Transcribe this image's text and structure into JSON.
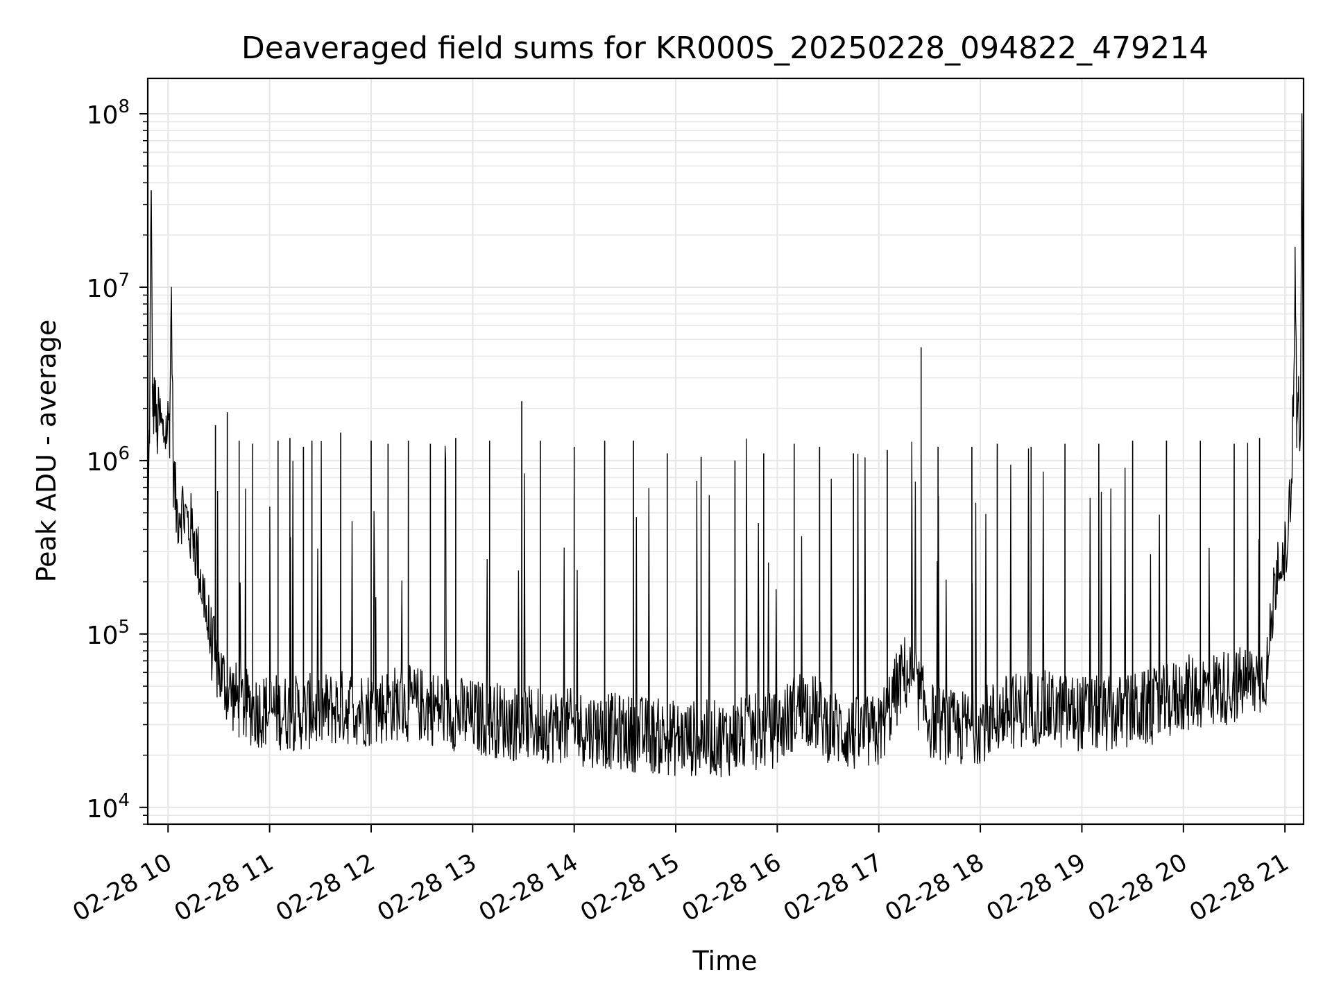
{
  "chart_data": {
    "type": "line",
    "title": "Deaveraged field sums for KR000S_20250228_094822_479214",
    "xlabel": "Time",
    "ylabel": "Peak ADU - average",
    "y_scale": "log",
    "ylim": [
      8000,
      160000000
    ],
    "xlim": [
      "2025-02-28 09:48",
      "2025-02-28 21:11"
    ],
    "grid": true,
    "line_color": "#000000",
    "grid_color": "#e6e6e6",
    "x_ticks": [
      {
        "value": "2025-02-28 10:00",
        "label": "02-28 10"
      },
      {
        "value": "2025-02-28 11:00",
        "label": "02-28 11"
      },
      {
        "value": "2025-02-28 12:00",
        "label": "02-28 12"
      },
      {
        "value": "2025-02-28 13:00",
        "label": "02-28 13"
      },
      {
        "value": "2025-02-28 14:00",
        "label": "02-28 14"
      },
      {
        "value": "2025-02-28 15:00",
        "label": "02-28 15"
      },
      {
        "value": "2025-02-28 16:00",
        "label": "02-28 16"
      },
      {
        "value": "2025-02-28 17:00",
        "label": "02-28 17"
      },
      {
        "value": "2025-02-28 18:00",
        "label": "02-28 18"
      },
      {
        "value": "2025-02-28 19:00",
        "label": "02-28 19"
      },
      {
        "value": "2025-02-28 20:00",
        "label": "02-28 20"
      },
      {
        "value": "2025-02-28 21:00",
        "label": "02-28 21"
      }
    ],
    "y_ticks": [
      {
        "value": 10000,
        "base": "10",
        "exp": "4"
      },
      {
        "value": 100000,
        "base": "10",
        "exp": "5"
      },
      {
        "value": 1000000,
        "base": "10",
        "exp": "6"
      },
      {
        "value": 10000000,
        "base": "10",
        "exp": "7"
      },
      {
        "value": 100000000,
        "base": "10",
        "exp": "8"
      }
    ],
    "series": [
      {
        "points": [
          [
            "2025-02-28 09:48",
            300000
          ],
          [
            "2025-02-28 09:49",
            1500000
          ],
          [
            "2025-02-28 09:50",
            36000000
          ],
          [
            "2025-02-28 09:51",
            1800000
          ],
          [
            "2025-02-28 09:52",
            2500000
          ],
          [
            "2025-02-28 09:53",
            1500000
          ],
          [
            "2025-02-28 09:55",
            1700000
          ],
          [
            "2025-02-28 09:57",
            1400000
          ],
          [
            "2025-02-28 10:01",
            1700000
          ],
          [
            "2025-02-28 10:02",
            10000000
          ],
          [
            "2025-02-28 10:03",
            900000
          ],
          [
            "2025-02-28 10:05",
            500000
          ],
          [
            "2025-02-28 10:08",
            550000
          ],
          [
            "2025-02-28 10:12",
            420000
          ],
          [
            "2025-02-28 10:15",
            380000
          ],
          [
            "2025-02-28 10:18",
            260000
          ],
          [
            "2025-02-28 10:22",
            140000
          ],
          [
            "2025-02-28 10:25",
            95000
          ],
          [
            "2025-02-28 10:28",
            70000
          ],
          [
            "2025-02-28 10:32",
            55000
          ],
          [
            "2025-02-28 10:36",
            48000
          ],
          [
            "2025-02-28 10:40",
            42000
          ],
          [
            "2025-02-28 10:45",
            38000
          ],
          [
            "2025-02-28 10:50",
            37000
          ],
          [
            "2025-02-28 11:00",
            36000
          ],
          [
            "2025-02-28 11:15",
            35000
          ],
          [
            "2025-02-28 11:30",
            36000
          ],
          [
            "2025-02-28 11:45",
            38000
          ],
          [
            "2025-02-28 12:00",
            37000
          ],
          [
            "2025-02-28 12:15",
            40000
          ],
          [
            "2025-02-28 12:30",
            39000
          ],
          [
            "2025-02-28 12:45",
            36000
          ],
          [
            "2025-02-28 13:00",
            33000
          ],
          [
            "2025-02-28 13:15",
            32000
          ],
          [
            "2025-02-28 13:30",
            30000
          ],
          [
            "2025-02-28 13:45",
            30000
          ],
          [
            "2025-02-28 14:00",
            29000
          ],
          [
            "2025-02-28 14:15",
            28000
          ],
          [
            "2025-02-28 14:30",
            27000
          ],
          [
            "2025-02-28 14:45",
            26000
          ],
          [
            "2025-02-28 15:00",
            25000
          ],
          [
            "2025-02-28 15:15",
            25000
          ],
          [
            "2025-02-28 15:30",
            25000
          ],
          [
            "2025-02-28 15:45",
            27000
          ],
          [
            "2025-02-28 16:00",
            28000
          ],
          [
            "2025-02-28 16:15",
            40000
          ],
          [
            "2025-02-28 16:30",
            30000
          ],
          [
            "2025-02-28 16:45",
            26000
          ],
          [
            "2025-02-28 17:00",
            27000
          ],
          [
            "2025-02-28 17:15",
            60000
          ],
          [
            "2025-02-28 17:20",
            55000
          ],
          [
            "2025-02-28 17:30",
            32000
          ],
          [
            "2025-02-28 17:45",
            28000
          ],
          [
            "2025-02-28 18:00",
            30000
          ],
          [
            "2025-02-28 18:15",
            35000
          ],
          [
            "2025-02-28 18:30",
            38000
          ],
          [
            "2025-02-28 18:45",
            36000
          ],
          [
            "2025-02-28 19:00",
            35000
          ],
          [
            "2025-02-28 19:15",
            34000
          ],
          [
            "2025-02-28 19:30",
            36000
          ],
          [
            "2025-02-28 19:45",
            38000
          ],
          [
            "2025-02-28 20:00",
            45000
          ],
          [
            "2025-02-28 20:15",
            48000
          ],
          [
            "2025-02-28 20:30",
            50000
          ],
          [
            "2025-02-28 20:45",
            55000
          ],
          [
            "2025-02-28 20:50",
            65000
          ],
          [
            "2025-02-28 20:53",
            150000
          ],
          [
            "2025-02-28 20:56",
            300000
          ],
          [
            "2025-02-28 20:59",
            220000
          ],
          [
            "2025-02-28 21:02",
            400000
          ],
          [
            "2025-02-28 21:05",
            1800000
          ],
          [
            "2025-02-28 21:06",
            17000000
          ],
          [
            "2025-02-28 21:07",
            1600000
          ],
          [
            "2025-02-28 21:08",
            2200000
          ],
          [
            "2025-02-28 21:09",
            1300000
          ],
          [
            "2025-02-28 21:10",
            100000000
          ],
          [
            "2025-02-28 21:11",
            350000
          ]
        ],
        "spikes": [
          [
            "2025-02-28 10:28",
            1600000
          ],
          [
            "2025-02-28 10:35",
            1900000
          ],
          [
            "2025-02-28 10:42",
            1300000
          ],
          [
            "2025-02-28 10:50",
            1250000
          ],
          [
            "2025-02-28 11:05",
            1300000
          ],
          [
            "2025-02-28 11:12",
            1350000
          ],
          [
            "2025-02-28 11:20",
            1200000
          ],
          [
            "2025-02-28 11:25",
            1300000
          ],
          [
            "2025-02-28 11:42",
            1450000
          ],
          [
            "2025-02-28 12:00",
            1300000
          ],
          [
            "2025-02-28 12:10",
            1250000
          ],
          [
            "2025-02-28 12:22",
            1300000
          ],
          [
            "2025-02-28 12:35",
            1250000
          ],
          [
            "2025-02-28 12:50",
            1350000
          ],
          [
            "2025-02-28 13:10",
            1300000
          ],
          [
            "2025-02-28 13:29",
            2200000
          ],
          [
            "2025-02-28 13:40",
            1300000
          ],
          [
            "2025-02-28 14:00",
            1200000
          ],
          [
            "2025-02-28 14:18",
            1300000
          ],
          [
            "2025-02-28 14:35",
            1300000
          ],
          [
            "2025-02-28 14:55",
            1100000
          ],
          [
            "2025-02-28 15:15",
            1050000
          ],
          [
            "2025-02-28 15:35",
            1000000
          ],
          [
            "2025-02-28 15:52",
            1100000
          ],
          [
            "2025-02-28 16:10",
            1250000
          ],
          [
            "2025-02-28 16:25",
            1200000
          ],
          [
            "2025-02-28 16:45",
            1100000
          ],
          [
            "2025-02-28 17:05",
            1150000
          ],
          [
            "2025-02-28 17:25",
            4500000
          ],
          [
            "2025-02-28 17:35",
            1200000
          ],
          [
            "2025-02-28 17:55",
            1200000
          ],
          [
            "2025-02-28 18:10",
            1250000
          ],
          [
            "2025-02-28 18:30",
            1200000
          ],
          [
            "2025-02-28 18:50",
            1250000
          ],
          [
            "2025-02-28 19:10",
            1250000
          ],
          [
            "2025-02-28 19:30",
            1300000
          ],
          [
            "2025-02-28 19:50",
            1300000
          ],
          [
            "2025-02-28 20:10",
            1300000
          ],
          [
            "2025-02-28 20:30",
            1250000
          ],
          [
            "2025-02-28 20:45",
            1350000
          ]
        ]
      }
    ]
  }
}
